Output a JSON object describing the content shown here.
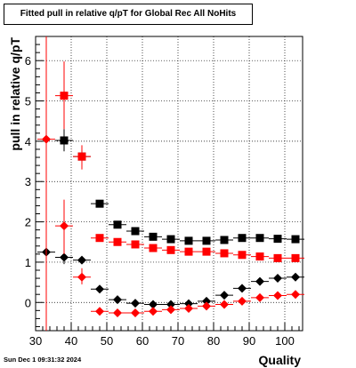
{
  "title": "Fitted pull in relative q/pT for Global Rec All NoHits",
  "timestamp": "Sun Dec  1 09:31:32 2024",
  "chart_data": {
    "type": "scatter",
    "title": "Fitted pull in relative q/pT for Global Rec All NoHits",
    "xlabel": "Quality",
    "ylabel": "pull in relative q/pT",
    "xlim": [
      30,
      105
    ],
    "ylim": [
      -0.7,
      6.6
    ],
    "grid": true,
    "x_ticks": [
      30,
      40,
      50,
      60,
      70,
      80,
      90,
      100
    ],
    "y_ticks": [
      0,
      1,
      2,
      3,
      4,
      5,
      6
    ],
    "series": [
      {
        "marker": "square",
        "color": "#000000",
        "points": [
          {
            "x": 38,
            "y": 4.02,
            "ylo": 3.75,
            "yhi": 4.3
          },
          {
            "x": 43,
            "y": 3.62,
            "ylo": 3.5,
            "yhi": 3.75
          },
          {
            "x": 48,
            "y": 2.45
          },
          {
            "x": 53,
            "y": 1.93
          },
          {
            "x": 58,
            "y": 1.77
          },
          {
            "x": 63,
            "y": 1.63
          },
          {
            "x": 68,
            "y": 1.57
          },
          {
            "x": 73,
            "y": 1.53
          },
          {
            "x": 78,
            "y": 1.53
          },
          {
            "x": 83,
            "y": 1.55
          },
          {
            "x": 88,
            "y": 1.6
          },
          {
            "x": 93,
            "y": 1.6
          },
          {
            "x": 98,
            "y": 1.58
          },
          {
            "x": 103,
            "y": 1.57
          }
        ]
      },
      {
        "marker": "square",
        "color": "#ff0000",
        "points": [
          {
            "x": 38,
            "y": 5.13,
            "ylo": 4.3,
            "yhi": 5.98
          },
          {
            "x": 43,
            "y": 3.62,
            "ylo": 3.3,
            "yhi": 3.9
          },
          {
            "x": 48,
            "y": 1.6
          },
          {
            "x": 53,
            "y": 1.5
          },
          {
            "x": 58,
            "y": 1.44
          },
          {
            "x": 63,
            "y": 1.35
          },
          {
            "x": 68,
            "y": 1.3
          },
          {
            "x": 73,
            "y": 1.26
          },
          {
            "x": 78,
            "y": 1.26
          },
          {
            "x": 83,
            "y": 1.22
          },
          {
            "x": 88,
            "y": 1.18
          },
          {
            "x": 93,
            "y": 1.14
          },
          {
            "x": 98,
            "y": 1.1
          },
          {
            "x": 103,
            "y": 1.1
          }
        ]
      },
      {
        "marker": "diamond",
        "color": "#000000",
        "points": [
          {
            "x": 33,
            "y": 1.25,
            "ylo": 1.0,
            "yhi": 1.5
          },
          {
            "x": 38,
            "y": 1.12,
            "ylo": 0.95,
            "yhi": 1.3
          },
          {
            "x": 43,
            "y": 1.05
          },
          {
            "x": 48,
            "y": 0.33
          },
          {
            "x": 53,
            "y": 0.07
          },
          {
            "x": 58,
            "y": -0.02
          },
          {
            "x": 63,
            "y": -0.05
          },
          {
            "x": 68,
            "y": -0.05
          },
          {
            "x": 73,
            "y": -0.03
          },
          {
            "x": 78,
            "y": 0.03
          },
          {
            "x": 83,
            "y": 0.18
          },
          {
            "x": 88,
            "y": 0.35
          },
          {
            "x": 93,
            "y": 0.52
          },
          {
            "x": 98,
            "y": 0.6
          },
          {
            "x": 103,
            "y": 0.63
          }
        ]
      },
      {
        "marker": "diamond",
        "color": "#ff0000",
        "points": [
          {
            "x": 33,
            "y": 4.05,
            "ylo": -0.7,
            "yhi": 6.6
          },
          {
            "x": 38,
            "y": 1.9,
            "ylo": 1.2,
            "yhi": 2.55
          },
          {
            "x": 43,
            "y": 0.63,
            "ylo": 0.45,
            "yhi": 0.85
          },
          {
            "x": 48,
            "y": -0.22
          },
          {
            "x": 53,
            "y": -0.26
          },
          {
            "x": 58,
            "y": -0.26
          },
          {
            "x": 63,
            "y": -0.22
          },
          {
            "x": 68,
            "y": -0.18
          },
          {
            "x": 73,
            "y": -0.15
          },
          {
            "x": 78,
            "y": -0.09
          },
          {
            "x": 83,
            "y": -0.05
          },
          {
            "x": 88,
            "y": 0.03
          },
          {
            "x": 93,
            "y": 0.12
          },
          {
            "x": 98,
            "y": 0.17
          },
          {
            "x": 103,
            "y": 0.2
          }
        ]
      }
    ]
  }
}
